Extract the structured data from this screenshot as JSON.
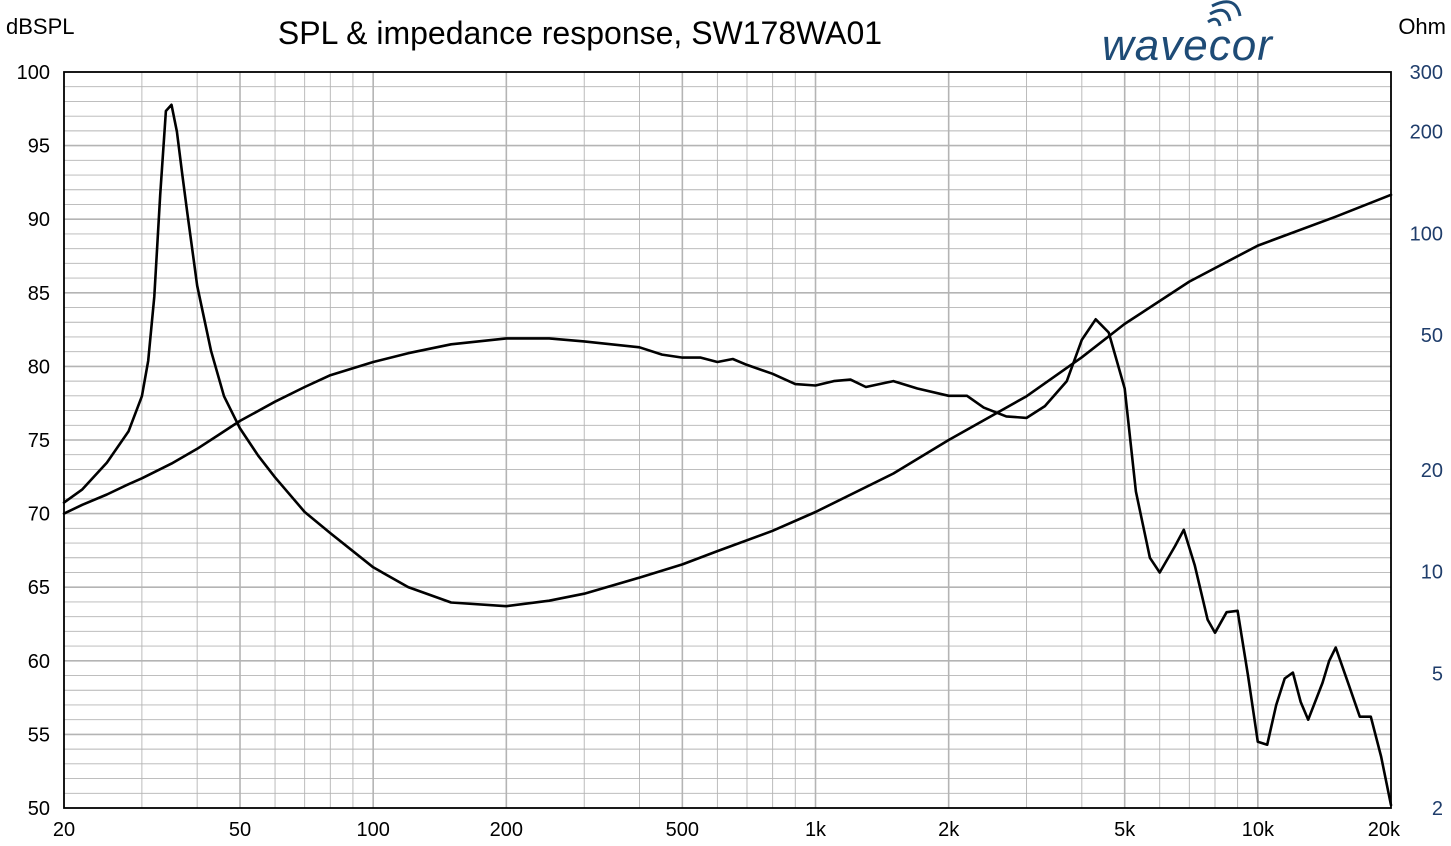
{
  "chart_data": {
    "type": "line",
    "title": "SPL & impedance response, SW178WA01",
    "brand": "wavecor",
    "ylabel_left": "dBSPL",
    "ylabel_right": "Ohm",
    "xscale": "log",
    "xlim": [
      20,
      20000
    ],
    "ylim_left": [
      50,
      100
    ],
    "ylim_right": [
      2,
      300
    ],
    "yscale_right": "log",
    "grid": true,
    "colors": {
      "curve": "#000000",
      "grid": "#b4b4b4",
      "right_axis_text": "#1f3d6b",
      "logo": "#1e4b76"
    },
    "x_ticks": [
      {
        "value": 20,
        "label": "20"
      },
      {
        "value": 50,
        "label": "50"
      },
      {
        "value": 100,
        "label": "100"
      },
      {
        "value": 200,
        "label": "200"
      },
      {
        "value": 500,
        "label": "500"
      },
      {
        "value": 1000,
        "label": "1k"
      },
      {
        "value": 2000,
        "label": "2k"
      },
      {
        "value": 5000,
        "label": "5k"
      },
      {
        "value": 10000,
        "label": "10k"
      },
      {
        "value": 20000,
        "label": "20k"
      }
    ],
    "y_ticks_left": [
      {
        "value": 100,
        "label": "100"
      },
      {
        "value": 95,
        "label": "95"
      },
      {
        "value": 90,
        "label": "90"
      },
      {
        "value": 85,
        "label": "85"
      },
      {
        "value": 80,
        "label": "80"
      },
      {
        "value": 75,
        "label": "75"
      },
      {
        "value": 70,
        "label": "70"
      },
      {
        "value": 65,
        "label": "65"
      },
      {
        "value": 60,
        "label": "60"
      },
      {
        "value": 55,
        "label": "55"
      },
      {
        "value": 50,
        "label": "50"
      }
    ],
    "y_ticks_right": [
      {
        "value": 300,
        "label": "300"
      },
      {
        "value": 200,
        "label": "200"
      },
      {
        "value": 100,
        "label": "100"
      },
      {
        "value": 50,
        "label": "50"
      },
      {
        "value": 20,
        "label": "20"
      },
      {
        "value": 10,
        "label": "10"
      },
      {
        "value": 5,
        "label": "5"
      },
      {
        "value": 2,
        "label": "2"
      }
    ],
    "series": [
      {
        "axis": "left",
        "points": [
          [
            20,
            70.0
          ],
          [
            22,
            70.6
          ],
          [
            25,
            71.3
          ],
          [
            28,
            72.0
          ],
          [
            30,
            72.4
          ],
          [
            35,
            73.4
          ],
          [
            40,
            74.4
          ],
          [
            45,
            75.4
          ],
          [
            50,
            76.3
          ],
          [
            60,
            77.6
          ],
          [
            70,
            78.6
          ],
          [
            80,
            79.4
          ],
          [
            100,
            80.3
          ],
          [
            120,
            80.9
          ],
          [
            150,
            81.5
          ],
          [
            200,
            81.9
          ],
          [
            250,
            81.9
          ],
          [
            300,
            81.7
          ],
          [
            400,
            81.3
          ],
          [
            450,
            80.8
          ],
          [
            500,
            80.6
          ],
          [
            550,
            80.6
          ],
          [
            600,
            80.3
          ],
          [
            650,
            80.5
          ],
          [
            700,
            80.1
          ],
          [
            800,
            79.5
          ],
          [
            900,
            78.8
          ],
          [
            1000,
            78.7
          ],
          [
            1100,
            79.0
          ],
          [
            1200,
            79.1
          ],
          [
            1300,
            78.6
          ],
          [
            1500,
            79.0
          ],
          [
            1700,
            78.5
          ],
          [
            2000,
            78.0
          ],
          [
            2200,
            78.0
          ],
          [
            2400,
            77.2
          ],
          [
            2700,
            76.6
          ],
          [
            3000,
            76.5
          ],
          [
            3300,
            77.3
          ],
          [
            3700,
            79.0
          ],
          [
            4000,
            81.8
          ],
          [
            4300,
            83.2
          ],
          [
            4600,
            82.3
          ],
          [
            5000,
            78.5
          ],
          [
            5300,
            71.5
          ],
          [
            5700,
            67.0
          ],
          [
            6000,
            66.0
          ],
          [
            6500,
            67.8
          ],
          [
            6800,
            68.9
          ],
          [
            7200,
            66.5
          ],
          [
            7700,
            62.8
          ],
          [
            8000,
            61.9
          ],
          [
            8500,
            63.3
          ],
          [
            9000,
            63.4
          ],
          [
            9500,
            59.0
          ],
          [
            10000,
            54.5
          ],
          [
            10500,
            54.3
          ],
          [
            11000,
            57.0
          ],
          [
            11500,
            58.8
          ],
          [
            12000,
            59.2
          ],
          [
            12500,
            57.2
          ],
          [
            13000,
            56.0
          ],
          [
            14000,
            58.5
          ],
          [
            14500,
            60.0
          ],
          [
            15000,
            60.9
          ],
          [
            16000,
            58.5
          ],
          [
            17000,
            56.2
          ],
          [
            18000,
            56.2
          ],
          [
            19000,
            53.5
          ],
          [
            20000,
            50.2
          ]
        ]
      },
      {
        "axis": "right",
        "points": [
          [
            20,
            16.0
          ],
          [
            22,
            17.5
          ],
          [
            25,
            21.0
          ],
          [
            28,
            26.0
          ],
          [
            30,
            33.0
          ],
          [
            31,
            42.0
          ],
          [
            32,
            65.0
          ],
          [
            33,
            130.0
          ],
          [
            34,
            230.0
          ],
          [
            35,
            240.0
          ],
          [
            36,
            200.0
          ],
          [
            37,
            150.0
          ],
          [
            38,
            115.0
          ],
          [
            40,
            70.0
          ],
          [
            43,
            45.0
          ],
          [
            46,
            33.0
          ],
          [
            50,
            26.5
          ],
          [
            55,
            22.0
          ],
          [
            60,
            19.0
          ],
          [
            70,
            15.0
          ],
          [
            80,
            13.0
          ],
          [
            100,
            10.3
          ],
          [
            120,
            9.0
          ],
          [
            150,
            8.1
          ],
          [
            200,
            7.9
          ],
          [
            250,
            8.2
          ],
          [
            300,
            8.6
          ],
          [
            400,
            9.6
          ],
          [
            500,
            10.5
          ],
          [
            600,
            11.5
          ],
          [
            800,
            13.2
          ],
          [
            1000,
            15.0
          ],
          [
            1500,
            19.5
          ],
          [
            2000,
            24.5
          ],
          [
            3000,
            33.0
          ],
          [
            4000,
            43.0
          ],
          [
            5000,
            54.0
          ],
          [
            7000,
            72.0
          ],
          [
            10000,
            92.0
          ],
          [
            15000,
            112.0
          ],
          [
            20000,
            130.0
          ]
        ]
      }
    ]
  }
}
